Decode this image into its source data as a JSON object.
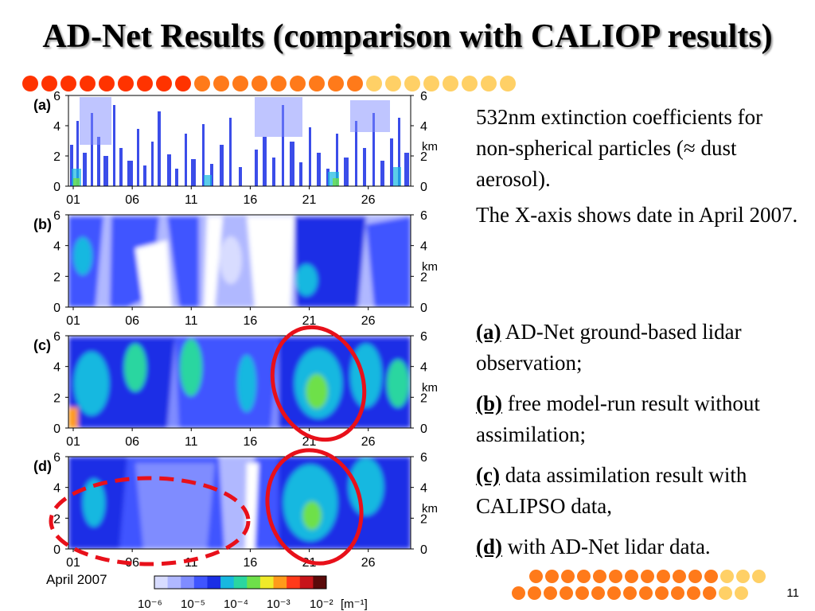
{
  "slide": {
    "title": "AD-Net Results (comparison with CALIOP results)",
    "page_number": "11"
  },
  "description": {
    "line1": "532nm extinction coefficients for non-spherical particles (≈ dust aerosol).",
    "line2": "The X-axis shows date in April 2007."
  },
  "legend_items": [
    {
      "label": "(a)",
      "text": " AD-Net ground-based lidar observation;"
    },
    {
      "label": "(b)",
      "text": " free model-run result without assimilation;"
    },
    {
      "label": "(c)",
      "text": " data assimilation result with CALIPSO data,"
    },
    {
      "label": "(d)",
      "text": " with AD-Net lidar data."
    }
  ],
  "figure": {
    "panels": [
      "(a)",
      "(b)",
      "(c)",
      "(d)"
    ],
    "y_ticks": [
      "0",
      "2",
      "4",
      "6"
    ],
    "y_unit": "km",
    "x_ticks": [
      "01",
      "06",
      "11",
      "16",
      "21",
      "26"
    ],
    "x_caption": "April 2007",
    "colorbar_labels": [
      "10⁻⁶",
      "10⁻⁵",
      "10⁻⁴",
      "10⁻³",
      "10⁻²"
    ],
    "colorbar_unit": "[m⁻¹]",
    "colorbar_colors": [
      "#d8dcff",
      "#b0b8ff",
      "#7f8cff",
      "#3f55ff",
      "#1a2fe6",
      "#17b8e0",
      "#2ad6a0",
      "#6ee04a",
      "#f0ea2a",
      "#ff9a1a",
      "#ff3a1a",
      "#c8141a",
      "#5a0a0a"
    ]
  },
  "colors": {
    "red_dot": "#ff3300",
    "orange_dot": "#ff7a1a",
    "yellow_dot": "#ffd066",
    "annotation_red": "#e8101a"
  }
}
